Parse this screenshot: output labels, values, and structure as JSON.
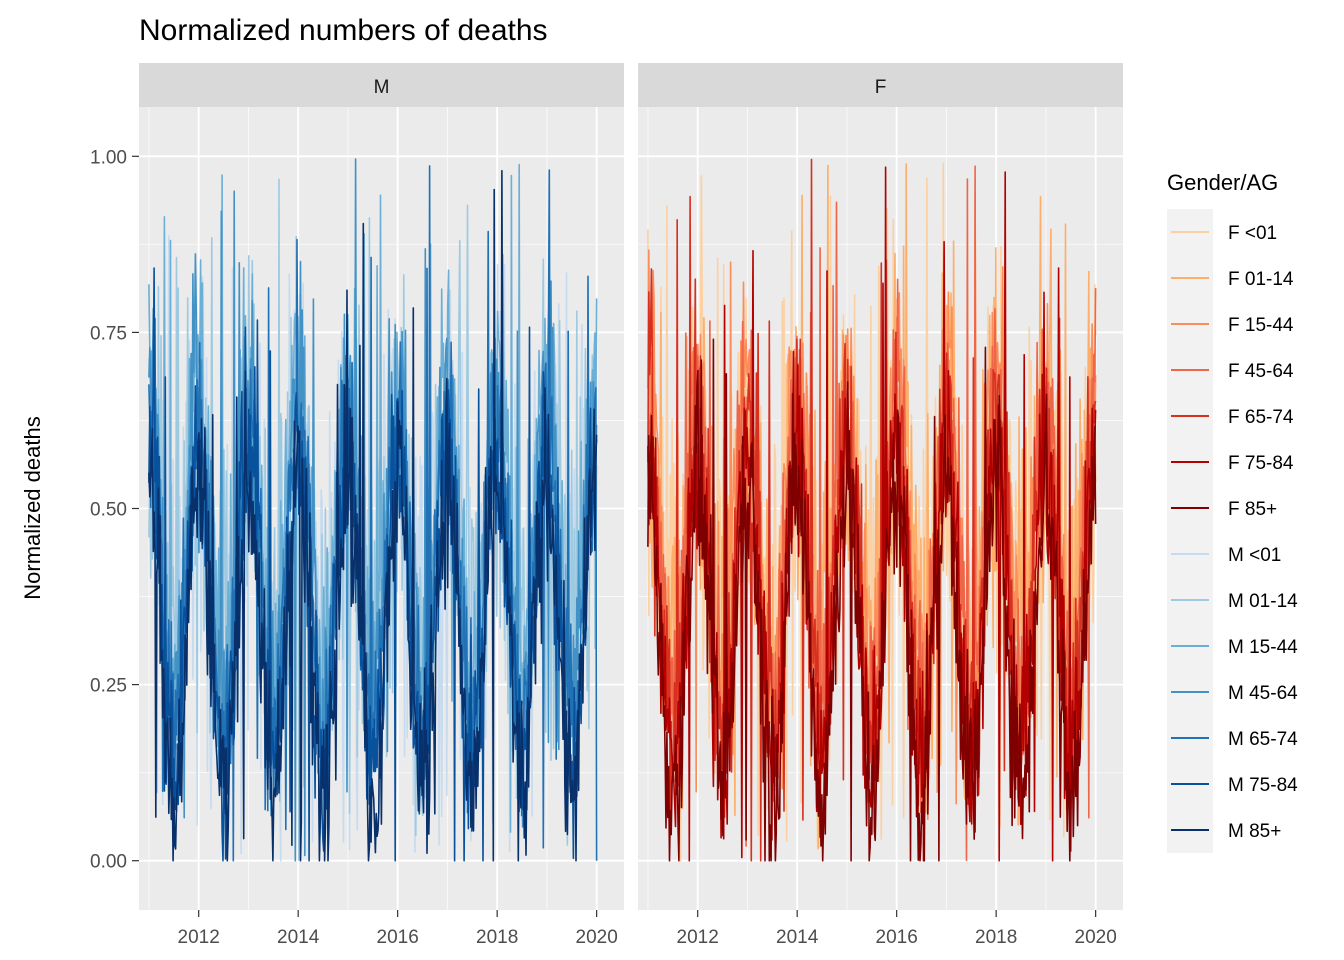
{
  "chart_data": {
    "type": "line",
    "title": "Normalized numbers of deaths",
    "xlabel": "",
    "ylabel": "Normalized deaths",
    "xlim": [
      2010.8,
      2020.55
    ],
    "ylim": [
      -0.07,
      1.07
    ],
    "x_ticks": [
      2012,
      2014,
      2016,
      2018,
      2020
    ],
    "x_tick_labels": [
      "2012",
      "2014",
      "2016",
      "2018",
      "2020"
    ],
    "y_ticks": [
      0.0,
      0.25,
      0.5,
      0.75,
      1.0
    ],
    "y_tick_labels": [
      "0.00",
      "0.25",
      "0.50",
      "0.75",
      "1.00"
    ],
    "x_range": [
      2011.0,
      2020.0
    ],
    "grid": true,
    "legend_position": "right",
    "legend_title": "Gender/AG",
    "panels": [
      {
        "label": "M",
        "series": [
          {
            "name": "M <01",
            "color": "#c6dbef",
            "pattern": "noisy-seasonal",
            "baseline": 0.46,
            "peak_max": 1.0
          },
          {
            "name": "M 01-14",
            "color": "#9ecae1",
            "pattern": "noisy-seasonal",
            "baseline": 0.45,
            "peak_max": 1.0
          },
          {
            "name": "M 15-44",
            "color": "#6baed6",
            "pattern": "seasonal",
            "baseline": 0.48,
            "peak_max": 1.0
          },
          {
            "name": "M 45-64",
            "color": "#4292c6",
            "pattern": "seasonal",
            "baseline": 0.44,
            "peak_max": 1.0
          },
          {
            "name": "M 65-74",
            "color": "#2171b5",
            "pattern": "seasonal",
            "baseline": 0.4,
            "peak_max": 1.0
          },
          {
            "name": "M 75-84",
            "color": "#08519c",
            "pattern": "seasonal",
            "baseline": 0.36,
            "peak_max": 1.0
          },
          {
            "name": "M 85+",
            "color": "#08306b",
            "pattern": "seasonal",
            "baseline": 0.32,
            "peak_max": 1.0
          }
        ]
      },
      {
        "label": "F",
        "series": [
          {
            "name": "F <01",
            "color": "#fdd0a2",
            "pattern": "noisy-seasonal",
            "baseline": 0.46,
            "peak_max": 1.0
          },
          {
            "name": "F 01-14",
            "color": "#fdae6b",
            "pattern": "noisy-seasonal",
            "baseline": 0.46,
            "peak_max": 1.0
          },
          {
            "name": "F 15-44",
            "color": "#fc8d59",
            "pattern": "seasonal",
            "baseline": 0.48,
            "peak_max": 1.0
          },
          {
            "name": "F 45-64",
            "color": "#ef6548",
            "pattern": "seasonal",
            "baseline": 0.44,
            "peak_max": 1.0
          },
          {
            "name": "F 65-74",
            "color": "#d7301f",
            "pattern": "seasonal",
            "baseline": 0.4,
            "peak_max": 1.0
          },
          {
            "name": "F 75-84",
            "color": "#b30000",
            "pattern": "seasonal",
            "baseline": 0.36,
            "peak_max": 1.0
          },
          {
            "name": "F 85+",
            "color": "#7f0000",
            "pattern": "seasonal",
            "baseline": 0.32,
            "peak_max": 1.0
          }
        ]
      }
    ],
    "legend_entries": [
      {
        "label": "F <01",
        "color": "#fdd0a2"
      },
      {
        "label": "F 01-14",
        "color": "#fdae6b"
      },
      {
        "label": "F 15-44",
        "color": "#fc8d59"
      },
      {
        "label": "F 45-64",
        "color": "#ef6548"
      },
      {
        "label": "F 65-74",
        "color": "#d7301f"
      },
      {
        "label": "F 75-84",
        "color": "#b30000"
      },
      {
        "label": "F 85+",
        "color": "#7f0000"
      },
      {
        "label": "M <01",
        "color": "#c6dbef"
      },
      {
        "label": "M 01-14",
        "color": "#9ecae1"
      },
      {
        "label": "M 15-44",
        "color": "#6baed6"
      },
      {
        "label": "M 45-64",
        "color": "#4292c6"
      },
      {
        "label": "M 65-74",
        "color": "#2171b5"
      },
      {
        "label": "M 75-84",
        "color": "#08519c"
      },
      {
        "label": "M 85+",
        "color": "#08306b"
      }
    ],
    "colors": {
      "panel_background": "#ebebeb",
      "strip_background": "#d9d9d9",
      "grid_major": "#ffffff",
      "legend_background": "#f2f2f2"
    }
  }
}
